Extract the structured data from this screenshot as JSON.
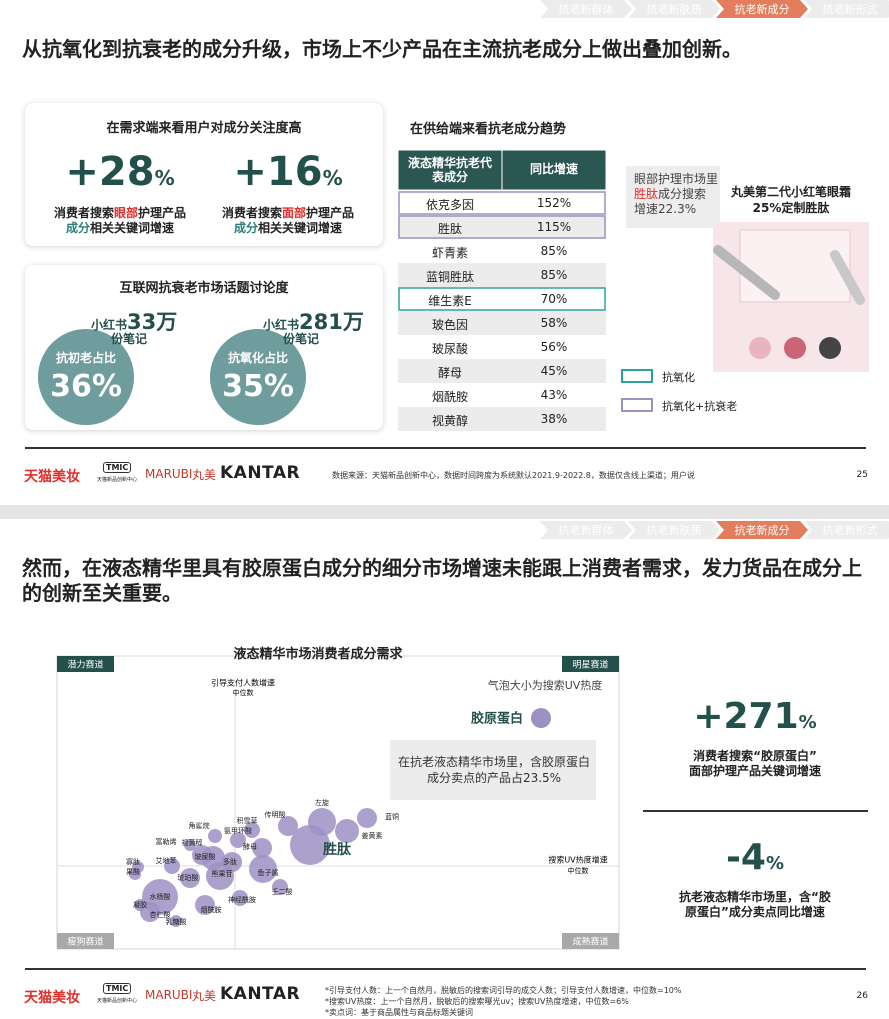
{
  "slides": [
    {
      "nav": [
        "抗老新群体",
        "抗老新肤质",
        "抗老新成分",
        "抗老新形式"
      ],
      "active_nav": 2,
      "title": "从抗氧化到抗衰老的成分升级，市场上不少产品在主流抗老成分上做出叠加创新。",
      "demand": {
        "heading": "在需求端来看用户对成分关注度高",
        "stats": [
          {
            "value": "+28",
            "unit": "%",
            "lines": [
              [
                {
                  "text": "消费者搜索"
                },
                {
                  "text": "眼部",
                  "color": "#e0302b"
                },
                {
                  "text": "护理产品"
                }
              ],
              [
                {
                  "text": "成分",
                  "color": "#2a8079"
                },
                {
                  "text": "相关关键词增速"
                }
              ]
            ]
          },
          {
            "value": "+16",
            "unit": "%",
            "lines": [
              [
                {
                  "text": "消费者搜索"
                },
                {
                  "text": "面部",
                  "color": "#e0302b"
                },
                {
                  "text": "护理产品"
                }
              ],
              [
                {
                  "text": "成分",
                  "color": "#2a8079"
                },
                {
                  "text": "相关关键词增速"
                }
              ]
            ]
          }
        ]
      },
      "discussion": {
        "heading": "互联网抗衰老市场话题讨论度",
        "items": [
          {
            "share_label": "抗初老占比",
            "share": "36%",
            "source": "小红书",
            "notes": "33万",
            "unit": "份笔记"
          },
          {
            "share_label": "抗氧化占比",
            "share": "35%",
            "source": "小红书",
            "notes": "281万",
            "unit": "份笔记"
          }
        ]
      },
      "supply": {
        "heading": "在供给端来看抗老成分趋势",
        "columns": [
          "液态精华抗老代表成分",
          "同比增速"
        ],
        "rows": [
          {
            "cells": [
              "依克多因",
              "152%"
            ],
            "group": 1
          },
          {
            "cells": [
              "胜肽",
              "115%"
            ],
            "group": 1
          },
          {
            "cells": [
              "虾青素",
              "85%"
            ]
          },
          {
            "cells": [
              "蓝铜胜肽",
              "85%"
            ]
          },
          {
            "cells": [
              "维生素E",
              "70%"
            ],
            "group": 0
          },
          {
            "cells": [
              "玻色因",
              "58%"
            ]
          },
          {
            "cells": [
              "玻尿酸",
              "56%"
            ]
          },
          {
            "cells": [
              "酵母",
              "45%"
            ]
          },
          {
            "cells": [
              "烟酰胺",
              "43%"
            ]
          },
          {
            "cells": [
              "视黄醇",
              "38%"
            ]
          }
        ],
        "legend": [
          {
            "label": "抗氧化",
            "color": "#2aa39a"
          },
          {
            "label": "抗氧化+抗衰老",
            "color": "#9d91c3"
          }
        ]
      },
      "callout": [
        {
          "text": "眼部护理市场里"
        },
        {
          "text": "胜肽",
          "color": "#e0302b"
        },
        {
          "text": "成分搜索增速22.3%"
        }
      ],
      "product": {
        "name": "丸美第二代小红笔眼霜",
        "claim": "25%定制胜肽"
      },
      "footer": {
        "brand": "天猫美妆",
        "tmic": "TMIC",
        "tmic_sub": "天猫新品创新中心",
        "marubi": "MARUBI",
        "marubi_cn": "丸美",
        "kantar": "KANTAR",
        "notes": [
          "数据来源：天猫新品创新中心，数据时间跨度为系统默认2021.9-2022.8，数据仅含线上渠道；用户说"
        ],
        "page": "25"
      }
    },
    {
      "nav": [
        "抗老新群体",
        "抗老新肤质",
        "抗老新成分",
        "抗老新形式"
      ],
      "active_nav": 2,
      "title": "然而，在液态精华里具有胶原蛋白成分的细分市场增速未能跟上消费者需求，发力货品在成分上的创新至关重要。",
      "matrix": {
        "title": "液态精华市场消费者成分需求",
        "quadrants": [
          "潜力赛道",
          "明星赛道",
          "瘦狗赛道",
          "成熟赛道"
        ],
        "y_axis": [
          "引导支付人数增速",
          "中位数"
        ],
        "x_axis": [
          "搜索UV热度增速",
          "中位数"
        ],
        "note": "气泡大小为搜索UV热度",
        "highlight": "胶原蛋白",
        "callout": "在抗老液态精华市场里，含胶原蛋白成分卖点的产品占23.5%",
        "bubbles": [
          {
            "label": "左旋"
          },
          {
            "label": "蓝铜"
          },
          {
            "label": "传明酸"
          },
          {
            "label": "姜黄素"
          },
          {
            "label": "积雪草"
          },
          {
            "label": "角鲨烷"
          },
          {
            "label": "氨甲环酸"
          },
          {
            "label": "酵母"
          },
          {
            "label": "胜肽",
            "emphasis": true
          },
          {
            "label": "富勒烯"
          },
          {
            "label": "视黄醇"
          },
          {
            "label": "玻尿酸"
          },
          {
            "label": "艾地苯"
          },
          {
            "label": "多肽"
          },
          {
            "label": "熊果苷"
          },
          {
            "label": "鱼子酱"
          },
          {
            "label": "寡肽"
          },
          {
            "label": "果酸"
          },
          {
            "label": "琥珀酸"
          },
          {
            "label": "神经酰胺"
          },
          {
            "label": "壬二酸"
          },
          {
            "label": "水杨酸"
          },
          {
            "label": "杏仁酸"
          },
          {
            "label": "烟酰胺"
          },
          {
            "label": "乳糖酸"
          },
          {
            "label": "凝胶"
          }
        ]
      },
      "stats": [
        {
          "value": "+271",
          "unit": "%",
          "lines": [
            [
              {
                "text": "消费者搜索“胶原蛋白”"
              }
            ],
            [
              {
                "text": "面部护理产品关键词增速"
              }
            ]
          ]
        },
        {
          "value": "-4",
          "unit": "%",
          "lines": [
            [
              {
                "text": "抗老液态精华市场里，含“胶"
              }
            ],
            [
              {
                "text": "原蛋白”成分卖点同比增速"
              }
            ]
          ]
        }
      ],
      "footer": {
        "brand": "天猫美妆",
        "tmic": "TMIC",
        "tmic_sub": "天猫新品创新中心",
        "marubi": "MARUBI",
        "marubi_cn": "丸美",
        "kantar": "KANTAR",
        "notes": [
          "*引导支付人数：上一个自然月，脱敏后的搜索词引导的成交人数；引导支付人数增速，中位数=10%",
          "*搜索UV热度：上一个自然月，脱敏后的搜索曝光uv；搜索UV热度增速，中位数=6%",
          "*卖点词：基于商品属性与商品标题关键词"
        ],
        "page": "26"
      }
    }
  ]
}
